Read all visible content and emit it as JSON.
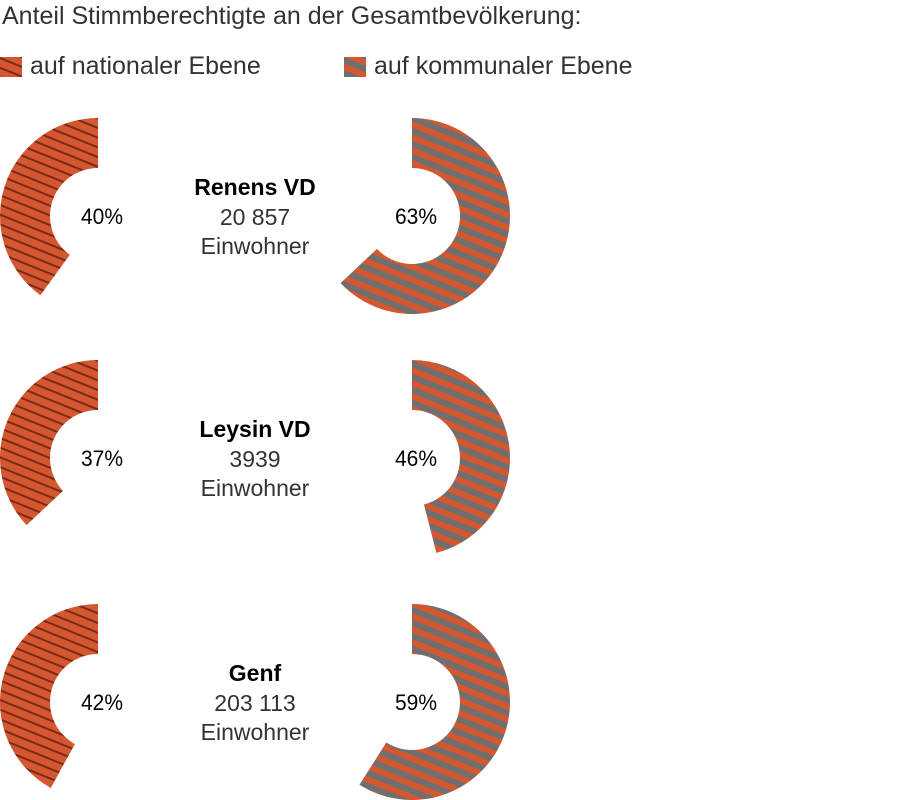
{
  "chart_data": {
    "type": "pie",
    "title": "Anteil Stimmberechtigte an der Gesamtbevölkerung:",
    "legend": [
      {
        "name": "auf nationaler Ebene",
        "color": "#d4572f",
        "stripe": "#7a2a18"
      },
      {
        "name": "auf kommunaler Ebene",
        "color": "#d4572f",
        "stripe": "#6f6f6f"
      }
    ],
    "rows": [
      {
        "city": "Renens VD",
        "population": "20 857",
        "unit": "Einwohner",
        "national": 40,
        "national_label": "40%",
        "communal": 63,
        "communal_label": "63%"
      },
      {
        "city": "Leysin VD",
        "population": "3939",
        "unit": "Einwohner",
        "national": 37,
        "national_label": "37%",
        "communal": 46,
        "communal_label": "46%"
      },
      {
        "city": "Genf",
        "population": "203 113",
        "unit": "Einwohner",
        "national": 42,
        "national_label": "42%",
        "communal": 59,
        "communal_label": "59%"
      }
    ]
  }
}
